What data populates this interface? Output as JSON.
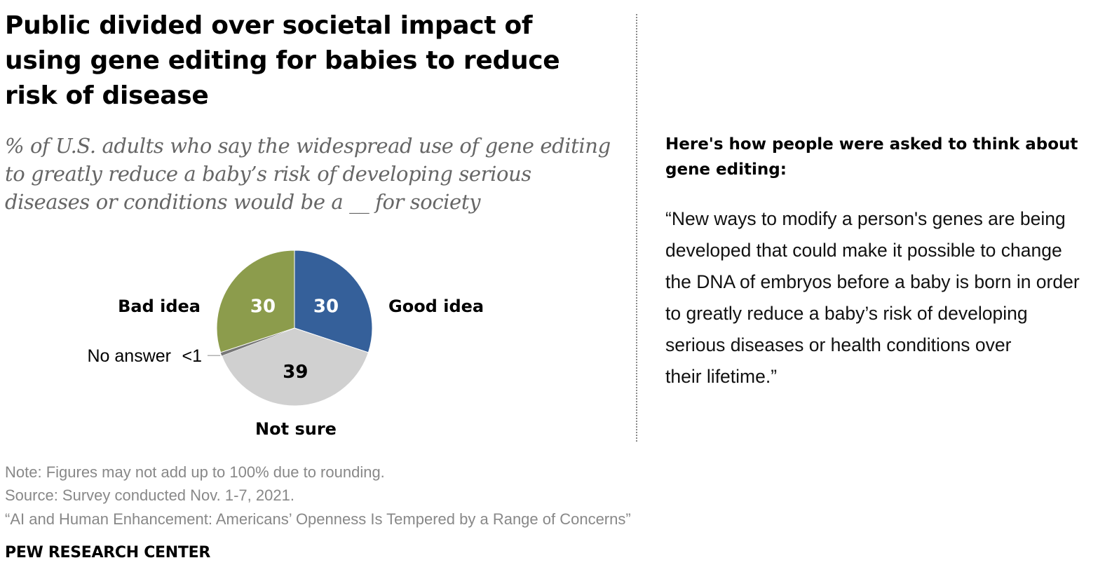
{
  "title": "Public divided over societal impact of using gene editing for babies to reduce risk of disease",
  "subtitle": "% of U.S. adults who say the widespread use of gene editing to greatly reduce a baby’s risk of developing serious diseases or conditions would be a __ for society",
  "sidebar": {
    "heading": "Here's how people were asked to think about gene editing:",
    "quote_lines": [
      "“New ways to modify a person's genes are being",
      "developed that could make it possible to change",
      "the DNA of embryos before a baby is born in order",
      "to greatly reduce a baby’s risk of developing",
      "serious diseases or health conditions over",
      "their lifetime.”"
    ]
  },
  "chart_data": {
    "type": "pie",
    "title": "",
    "slices": [
      {
        "label": "Good idea",
        "value": 30,
        "value_label": "30",
        "color": "#35609a"
      },
      {
        "label": "Not sure",
        "value": 39,
        "value_label": "39",
        "color": "#d0d0d0"
      },
      {
        "label": "No answer",
        "value": 0.7,
        "value_label": "<1",
        "color": "#777777"
      },
      {
        "label": "Bad idea",
        "value": 30,
        "value_label": "30",
        "color": "#8c9c4c"
      }
    ]
  },
  "footer": {
    "note": "Note: Figures may not add up to 100% due to rounding.",
    "source": "Source: Survey conducted Nov. 1-7, 2021.",
    "report": "“AI and Human Enhancement: Americans’ Openness Is Tempered by a Range of Concerns”",
    "brand": "PEW RESEARCH CENTER"
  }
}
